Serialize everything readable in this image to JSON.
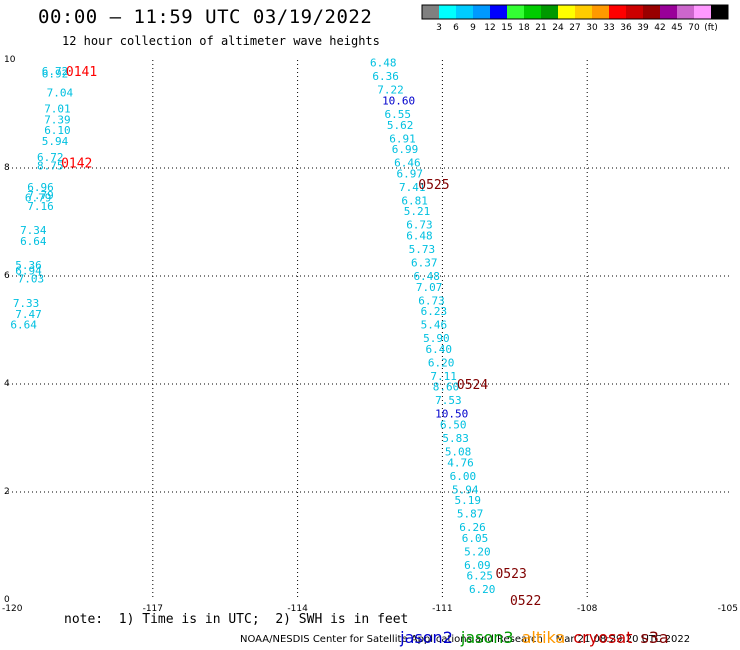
{
  "title": "00:00 – 11:59 UTC 03/19/2022",
  "subtitle": "12 hour collection of altimeter wave heights",
  "colorbar": {
    "colors": [
      "#808080",
      "#00ffff",
      "#00ccff",
      "#0099ff",
      "#0000ff",
      "#33ff33",
      "#00cc00",
      "#009900",
      "#ffff00",
      "#ffcc00",
      "#ff9900",
      "#ff0000",
      "#cc0000",
      "#990000",
      "#990099",
      "#cc66cc",
      "#ff99ff",
      "#000000"
    ],
    "labels": [
      "3",
      "6",
      "9",
      "12",
      "15",
      "18",
      "21",
      "24",
      "27",
      "30",
      "33",
      "36",
      "39",
      "42",
      "45",
      "70",
      "(ft)"
    ]
  },
  "axes": {
    "x_ticks": [
      "-120",
      "-117",
      "-114",
      "-111",
      "-108",
      "-105"
    ],
    "y_ticks": [
      "0",
      "2",
      "4",
      "6",
      "8",
      "10"
    ]
  },
  "footer": {
    "note": "note:  1) Time is in UTC;  2) SWH is in feet",
    "credit": "NOAA/NESDIS Center for Satellite Applications and Research    Mar 21 08:29:20 UTC 2022"
  },
  "legend": [
    {
      "label": "jason2",
      "color": "#0000cc"
    },
    {
      "label": "jason3",
      "color": "#009900"
    },
    {
      "label": "altika",
      "color": "#ff9900"
    },
    {
      "label": "cryosat",
      "color": "#cc0000"
    },
    {
      "label": "s3a",
      "color": "#800000"
    }
  ],
  "chart_data": {
    "type": "scatter",
    "xlim": [
      -120,
      -105
    ],
    "ylim": [
      0,
      10
    ],
    "grid": true,
    "track_labels": [
      {
        "text": "0141",
        "x": -118.8,
        "y": 9.8,
        "color": "#ff0000"
      },
      {
        "text": "0142",
        "x": -118.9,
        "y": 8.1,
        "color": "#ff0000"
      },
      {
        "text": "0525",
        "x": -111.5,
        "y": 7.7,
        "color": "#800000"
      },
      {
        "text": "0524",
        "x": -110.7,
        "y": 4.0,
        "color": "#800000"
      },
      {
        "text": "0523",
        "x": -109.9,
        "y": 0.5,
        "color": "#800000"
      },
      {
        "text": "0522",
        "x": -109.6,
        "y": 0.0,
        "color": "#800000"
      }
    ],
    "points": [
      {
        "v": "6.72",
        "x": -119.3,
        "y": 9.8,
        "c": "#00c0e0"
      },
      {
        "v": "6.92",
        "x": -119.3,
        "y": 9.75,
        "c": "#00c0e0"
      },
      {
        "v": "7.04",
        "x": -119.2,
        "y": 9.4,
        "c": "#00c0e0"
      },
      {
        "v": "7.01",
        "x": -119.25,
        "y": 9.1,
        "c": "#00c0e0"
      },
      {
        "v": "7.39",
        "x": -119.25,
        "y": 8.9,
        "c": "#00c0e0"
      },
      {
        "v": "6.10",
        "x": -119.25,
        "y": 8.7,
        "c": "#00c0e0"
      },
      {
        "v": "5.94",
        "x": -119.3,
        "y": 8.5,
        "c": "#00c0e0"
      },
      {
        "v": "6.72",
        "x": -119.4,
        "y": 8.2,
        "c": "#00c0e0"
      },
      {
        "v": "8.75",
        "x": -119.4,
        "y": 8.05,
        "c": "#00c0e0"
      },
      {
        "v": "6.96",
        "x": -119.6,
        "y": 7.65,
        "c": "#00c0e0"
      },
      {
        "v": "7.79",
        "x": -119.6,
        "y": 7.5,
        "c": "#00c0e0"
      },
      {
        "v": "6.79",
        "x": -119.65,
        "y": 7.45,
        "c": "#00c0e0"
      },
      {
        "v": "7.16",
        "x": -119.6,
        "y": 7.3,
        "c": "#00c0e0"
      },
      {
        "v": "7.34",
        "x": -119.75,
        "y": 6.85,
        "c": "#00c0e0"
      },
      {
        "v": "6.64",
        "x": -119.75,
        "y": 6.65,
        "c": "#00c0e0"
      },
      {
        "v": "5.36",
        "x": -119.85,
        "y": 6.2,
        "c": "#00c0e0"
      },
      {
        "v": "6.94",
        "x": -119.85,
        "y": 6.1,
        "c": "#00c0e0"
      },
      {
        "v": "7.03",
        "x": -119.8,
        "y": 5.95,
        "c": "#00c0e0"
      },
      {
        "v": "7.33",
        "x": -119.9,
        "y": 5.5,
        "c": "#00c0e0"
      },
      {
        "v": "7.47",
        "x": -119.85,
        "y": 5.3,
        "c": "#00c0e0"
      },
      {
        "v": "6.64",
        "x": -119.95,
        "y": 5.1,
        "c": "#00c0e0"
      },
      {
        "v": "6.48",
        "x": -112.5,
        "y": 9.95,
        "c": "#00c0e0"
      },
      {
        "v": "6.36",
        "x": -112.45,
        "y": 9.7,
        "c": "#00c0e0"
      },
      {
        "v": "7.22",
        "x": -112.35,
        "y": 9.45,
        "c": "#00c0e0"
      },
      {
        "v": "10.60",
        "x": -112.25,
        "y": 9.25,
        "c": "#0000cc"
      },
      {
        "v": "6.55",
        "x": -112.2,
        "y": 9.0,
        "c": "#00c0e0"
      },
      {
        "v": "5.62",
        "x": -112.15,
        "y": 8.8,
        "c": "#00c0e0"
      },
      {
        "v": "6.91",
        "x": -112.1,
        "y": 8.55,
        "c": "#00c0e0"
      },
      {
        "v": "6.99",
        "x": -112.05,
        "y": 8.35,
        "c": "#00c0e0"
      },
      {
        "v": "6.46",
        "x": -112.0,
        "y": 8.1,
        "c": "#00c0e0"
      },
      {
        "v": "6.97",
        "x": -111.95,
        "y": 7.9,
        "c": "#00c0e0"
      },
      {
        "v": "7.41",
        "x": -111.9,
        "y": 7.65,
        "c": "#00c0e0"
      },
      {
        "v": "6.81",
        "x": -111.85,
        "y": 7.4,
        "c": "#00c0e0"
      },
      {
        "v": "5.21",
        "x": -111.8,
        "y": 7.2,
        "c": "#00c0e0"
      },
      {
        "v": "6.73",
        "x": -111.75,
        "y": 6.95,
        "c": "#00c0e0"
      },
      {
        "v": "6.48",
        "x": -111.75,
        "y": 6.75,
        "c": "#00c0e0"
      },
      {
        "v": "5.73",
        "x": -111.7,
        "y": 6.5,
        "c": "#00c0e0"
      },
      {
        "v": "6.37",
        "x": -111.65,
        "y": 6.25,
        "c": "#00c0e0"
      },
      {
        "v": "6.48",
        "x": -111.6,
        "y": 6.0,
        "c": "#00c0e0"
      },
      {
        "v": "7.07",
        "x": -111.55,
        "y": 5.8,
        "c": "#00c0e0"
      },
      {
        "v": "6.73",
        "x": -111.5,
        "y": 5.55,
        "c": "#00c0e0"
      },
      {
        "v": "6.23",
        "x": -111.45,
        "y": 5.35,
        "c": "#00c0e0"
      },
      {
        "v": "5.46",
        "x": -111.45,
        "y": 5.1,
        "c": "#00c0e0"
      },
      {
        "v": "5.90",
        "x": -111.4,
        "y": 4.85,
        "c": "#00c0e0"
      },
      {
        "v": "6.40",
        "x": -111.35,
        "y": 4.65,
        "c": "#00c0e0"
      },
      {
        "v": "6.20",
        "x": -111.3,
        "y": 4.4,
        "c": "#00c0e0"
      },
      {
        "v": "7.11",
        "x": -111.25,
        "y": 4.15,
        "c": "#00c0e0"
      },
      {
        "v": "8.60",
        "x": -111.2,
        "y": 3.95,
        "c": "#00c0e0"
      },
      {
        "v": "7.53",
        "x": -111.15,
        "y": 3.7,
        "c": "#00c0e0"
      },
      {
        "v": "10.50",
        "x": -111.15,
        "y": 3.45,
        "c": "#0000cc"
      },
      {
        "v": "6.50",
        "x": -111.05,
        "y": 3.25,
        "c": "#00c0e0"
      },
      {
        "v": "5.83",
        "x": -111.0,
        "y": 3.0,
        "c": "#00c0e0"
      },
      {
        "v": "5.08",
        "x": -110.95,
        "y": 2.75,
        "c": "#00c0e0"
      },
      {
        "v": "4.76",
        "x": -110.9,
        "y": 2.55,
        "c": "#00c0e0"
      },
      {
        "v": "6.00",
        "x": -110.85,
        "y": 2.3,
        "c": "#00c0e0"
      },
      {
        "v": "5.94",
        "x": -110.8,
        "y": 2.05,
        "c": "#00c0e0"
      },
      {
        "v": "5.19",
        "x": -110.75,
        "y": 1.85,
        "c": "#00c0e0"
      },
      {
        "v": "5.87",
        "x": -110.7,
        "y": 1.6,
        "c": "#00c0e0"
      },
      {
        "v": "6.26",
        "x": -110.65,
        "y": 1.35,
        "c": "#00c0e0"
      },
      {
        "v": "6.05",
        "x": -110.6,
        "y": 1.15,
        "c": "#00c0e0"
      },
      {
        "v": "5.20",
        "x": -110.55,
        "y": 0.9,
        "c": "#00c0e0"
      },
      {
        "v": "6.09",
        "x": -110.55,
        "y": 0.65,
        "c": "#00c0e0"
      },
      {
        "v": "6.25",
        "x": -110.5,
        "y": 0.45,
        "c": "#00c0e0"
      },
      {
        "v": "6.20",
        "x": -110.45,
        "y": 0.2,
        "c": "#00c0e0"
      }
    ]
  }
}
